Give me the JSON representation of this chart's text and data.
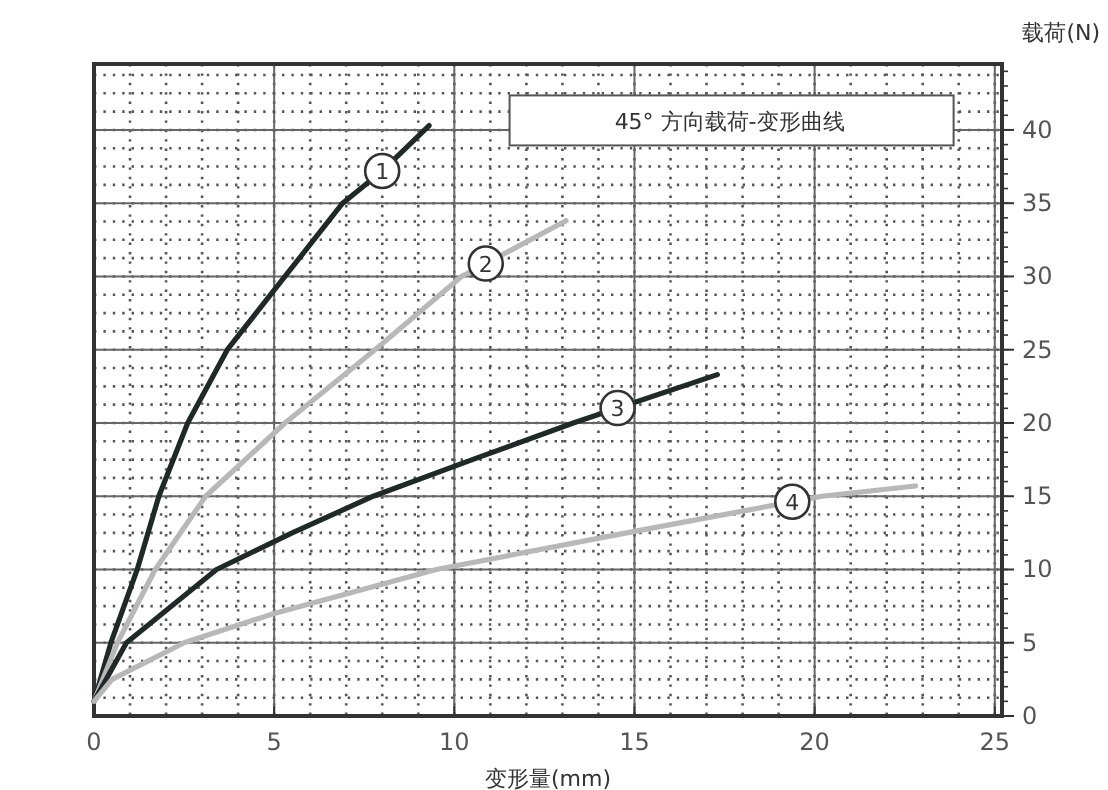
{
  "chart_data": {
    "type": "line",
    "title": "45° 方向载荷-变形曲线",
    "xlabel": "变形量(mm)",
    "ylabel": "载荷(N)",
    "xlim": [
      0,
      25.2
    ],
    "ylim": [
      0,
      44.5
    ],
    "xticks": [
      0,
      5,
      10,
      15,
      20,
      25
    ],
    "yticks": [
      0,
      5,
      10,
      15,
      20,
      25,
      30,
      35,
      40
    ],
    "grid": true,
    "marker": "none",
    "line_style": "solid",
    "series": [
      {
        "name": "1",
        "color": "#1f2a28",
        "x": [
          0,
          0.47,
          1.2,
          1.8,
          2.6,
          3.7,
          5.3,
          6.9,
          8,
          9.3
        ],
        "values": [
          1,
          5,
          10,
          15,
          20,
          25,
          30,
          35,
          37.2,
          40.3
        ]
      },
      {
        "name": "2",
        "color": "#b8b8b8",
        "x": [
          0,
          0.65,
          1.7,
          3.1,
          5.3,
          7.8,
          10.2,
          13.1
        ],
        "values": [
          1,
          5,
          10,
          15,
          20,
          25,
          30,
          33.8
        ]
      },
      {
        "name": "3",
        "color": "#1f2a28",
        "x": [
          0,
          0.9,
          3.4,
          5.5,
          7.75,
          10.5,
          13.3,
          17.3
        ],
        "values": [
          1,
          5,
          10,
          12.5,
          15,
          17.5,
          20,
          23.3
        ]
      },
      {
        "name": "4",
        "color": "#b8b8b8",
        "x": [
          0,
          0.5,
          2.5,
          5,
          9.5,
          15,
          20.2,
          22.8
        ],
        "values": [
          1,
          2.5,
          5,
          7,
          10,
          12.6,
          15,
          15.7
        ]
      }
    ]
  }
}
